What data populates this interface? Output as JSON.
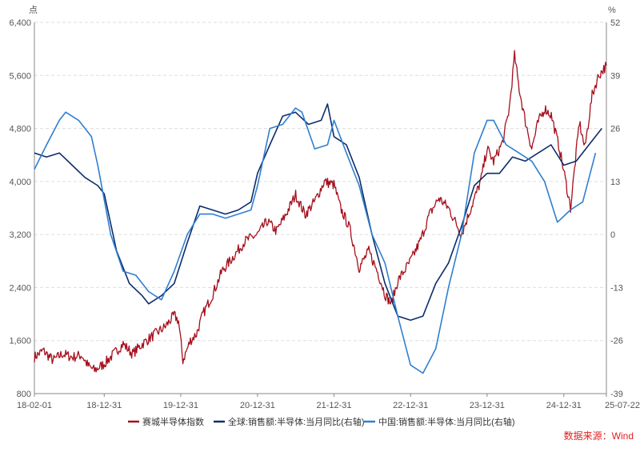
{
  "source_note": "数据来源：Wind",
  "colors": {
    "index": "#a50f1d",
    "global": "#0c2d6b",
    "china": "#2f7fd0",
    "axis_text": "#555555",
    "grid": "#dddddd",
    "source": "#e02020"
  },
  "chart_data": {
    "type": "line",
    "left_axis": {
      "unit": "点",
      "ylim": [
        800,
        6400
      ],
      "ticks": [
        "800",
        "1,600",
        "2,400",
        "3,200",
        "4,000",
        "4,800",
        "5,600",
        "6,400"
      ]
    },
    "right_axis": {
      "unit": "%",
      "ylim": [
        -39,
        52
      ],
      "ticks": [
        "-39",
        "-26",
        "-13",
        "0",
        "13",
        "26",
        "39",
        "52"
      ]
    },
    "x_axis": {
      "range": [
        "2018-02-01",
        "2025-07-22"
      ],
      "ticks": [
        "18-02-01",
        "18-12-31",
        "19-12-31",
        "20-12-31",
        "21-12-31",
        "22-12-31",
        "23-12-31",
        "24-12-31",
        "25-07-22"
      ]
    },
    "grid": "horizontal dashed",
    "legend_position": "bottom",
    "series": [
      {
        "name": "赛城半导体指数",
        "axis": "left",
        "points": [
          [
            "2018-02-01",
            1350
          ],
          [
            "2018-03-15",
            1450
          ],
          [
            "2018-05-01",
            1300
          ],
          [
            "2018-06-15",
            1400
          ],
          [
            "2018-08-01",
            1350
          ],
          [
            "2018-09-15",
            1380
          ],
          [
            "2018-10-15",
            1220
          ],
          [
            "2018-11-15",
            1150
          ],
          [
            "2018-12-31",
            1250
          ],
          [
            "2019-02-15",
            1400
          ],
          [
            "2019-03-31",
            1550
          ],
          [
            "2019-05-15",
            1400
          ],
          [
            "2019-07-01",
            1550
          ],
          [
            "2019-08-31",
            1700
          ],
          [
            "2019-10-15",
            1800
          ],
          [
            "2019-11-30",
            1980
          ],
          [
            "2019-12-20",
            1900
          ],
          [
            "2020-01-10",
            1300
          ],
          [
            "2020-02-15",
            1600
          ],
          [
            "2020-03-15",
            1700
          ],
          [
            "2020-04-15",
            2000
          ],
          [
            "2020-06-01",
            2300
          ],
          [
            "2020-07-15",
            2650
          ],
          [
            "2020-09-15",
            2900
          ],
          [
            "2020-11-01",
            3100
          ],
          [
            "2020-12-31",
            3200
          ],
          [
            "2021-02-15",
            3400
          ],
          [
            "2021-04-01",
            3250
          ],
          [
            "2021-05-15",
            3500
          ],
          [
            "2021-07-01",
            3800
          ],
          [
            "2021-08-15",
            3500
          ],
          [
            "2021-09-30",
            3700
          ],
          [
            "2021-11-15",
            4000
          ],
          [
            "2021-12-31",
            3950
          ],
          [
            "2022-01-31",
            3600
          ],
          [
            "2022-03-15",
            3300
          ],
          [
            "2022-04-30",
            2700
          ],
          [
            "2022-06-15",
            2950
          ],
          [
            "2022-07-31",
            2600
          ],
          [
            "2022-08-31",
            2300
          ],
          [
            "2022-09-30",
            2150
          ],
          [
            "2022-10-31",
            2500
          ],
          [
            "2022-12-31",
            2800
          ],
          [
            "2023-02-15",
            3100
          ],
          [
            "2023-03-31",
            3500
          ],
          [
            "2023-05-15",
            3750
          ],
          [
            "2023-06-30",
            3600
          ],
          [
            "2023-07-31",
            3400
          ],
          [
            "2023-08-31",
            3200
          ],
          [
            "2023-10-15",
            3600
          ],
          [
            "2023-11-30",
            4000
          ],
          [
            "2023-12-31",
            4500
          ],
          [
            "2024-01-31",
            4300
          ],
          [
            "2024-03-15",
            4600
          ],
          [
            "2024-04-15",
            5100
          ],
          [
            "2024-05-10",
            5900
          ],
          [
            "2024-06-01",
            5400
          ],
          [
            "2024-07-01",
            4900
          ],
          [
            "2024-07-31",
            4500
          ],
          [
            "2024-08-31",
            4900
          ],
          [
            "2024-10-01",
            5100
          ],
          [
            "2024-11-01",
            5000
          ],
          [
            "2024-12-10",
            4500
          ],
          [
            "2025-01-15",
            3900
          ],
          [
            "2025-02-01",
            3600
          ],
          [
            "2025-03-15",
            4900
          ],
          [
            "2025-04-10",
            4500
          ],
          [
            "2025-05-15",
            5300
          ],
          [
            "2025-06-15",
            5600
          ],
          [
            "2025-07-22",
            5750
          ]
        ]
      },
      {
        "name": "全球:销售额:半导体:当月同比(右轴)",
        "axis": "right",
        "points": [
          [
            "2018-02-01",
            20
          ],
          [
            "2018-03-31",
            19
          ],
          [
            "2018-05-31",
            20
          ],
          [
            "2018-07-31",
            17
          ],
          [
            "2018-09-30",
            14
          ],
          [
            "2018-11-30",
            12
          ],
          [
            "2018-12-31",
            10
          ],
          [
            "2019-02-28",
            -4
          ],
          [
            "2019-04-30",
            -12
          ],
          [
            "2019-06-30",
            -15
          ],
          [
            "2019-07-31",
            -17
          ],
          [
            "2019-09-30",
            -15
          ],
          [
            "2019-11-30",
            -12
          ],
          [
            "2020-01-31",
            -2
          ],
          [
            "2020-03-31",
            7
          ],
          [
            "2020-05-31",
            6
          ],
          [
            "2020-07-31",
            5
          ],
          [
            "2020-09-30",
            6
          ],
          [
            "2020-11-30",
            8
          ],
          [
            "2020-12-31",
            15
          ],
          [
            "2021-02-28",
            22
          ],
          [
            "2021-04-30",
            29
          ],
          [
            "2021-06-30",
            30
          ],
          [
            "2021-08-31",
            27
          ],
          [
            "2021-10-31",
            28
          ],
          [
            "2021-11-30",
            32
          ],
          [
            "2021-12-31",
            24
          ],
          [
            "2022-02-28",
            22
          ],
          [
            "2022-04-30",
            14
          ],
          [
            "2022-06-30",
            0
          ],
          [
            "2022-08-31",
            -12
          ],
          [
            "2022-10-31",
            -20
          ],
          [
            "2022-12-31",
            -21
          ],
          [
            "2023-02-28",
            -20
          ],
          [
            "2023-04-30",
            -12
          ],
          [
            "2023-06-30",
            -7
          ],
          [
            "2023-08-31",
            2
          ],
          [
            "2023-10-31",
            12
          ],
          [
            "2023-12-31",
            15
          ],
          [
            "2024-02-28",
            15
          ],
          [
            "2024-04-30",
            19
          ],
          [
            "2024-06-30",
            18
          ],
          [
            "2024-08-31",
            20
          ],
          [
            "2024-10-31",
            22
          ],
          [
            "2024-12-31",
            17
          ],
          [
            "2025-02-28",
            18
          ],
          [
            "2025-04-30",
            22
          ],
          [
            "2025-06-30",
            26
          ]
        ]
      },
      {
        "name": "中国:销售额:半导体:当月同比(右轴)",
        "axis": "right",
        "points": [
          [
            "2018-02-01",
            16
          ],
          [
            "2018-03-31",
            22
          ],
          [
            "2018-05-31",
            28
          ],
          [
            "2018-06-30",
            30
          ],
          [
            "2018-08-31",
            28
          ],
          [
            "2018-10-31",
            24
          ],
          [
            "2018-11-30",
            17
          ],
          [
            "2019-01-31",
            0
          ],
          [
            "2019-03-31",
            -9
          ],
          [
            "2019-05-31",
            -10
          ],
          [
            "2019-07-31",
            -14
          ],
          [
            "2019-09-30",
            -16
          ],
          [
            "2019-11-30",
            -9
          ],
          [
            "2020-01-31",
            0
          ],
          [
            "2020-03-31",
            5
          ],
          [
            "2020-05-31",
            5
          ],
          [
            "2020-07-31",
            4
          ],
          [
            "2020-09-30",
            5
          ],
          [
            "2020-11-30",
            6
          ],
          [
            "2020-12-31",
            12
          ],
          [
            "2021-02-28",
            26
          ],
          [
            "2021-04-30",
            27
          ],
          [
            "2021-06-30",
            31
          ],
          [
            "2021-07-31",
            30
          ],
          [
            "2021-09-30",
            21
          ],
          [
            "2021-11-30",
            22
          ],
          [
            "2021-12-31",
            28
          ],
          [
            "2022-02-28",
            20
          ],
          [
            "2022-04-30",
            12
          ],
          [
            "2022-06-30",
            0
          ],
          [
            "2022-08-31",
            -7
          ],
          [
            "2022-10-31",
            -20
          ],
          [
            "2022-12-31",
            -32
          ],
          [
            "2023-02-28",
            -34
          ],
          [
            "2023-04-30",
            -28
          ],
          [
            "2023-06-30",
            -13
          ],
          [
            "2023-08-31",
            0
          ],
          [
            "2023-10-31",
            20
          ],
          [
            "2023-12-31",
            28
          ],
          [
            "2024-01-31",
            28
          ],
          [
            "2024-03-31",
            22
          ],
          [
            "2024-05-31",
            20
          ],
          [
            "2024-07-31",
            18
          ],
          [
            "2024-09-30",
            13
          ],
          [
            "2024-11-30",
            3
          ],
          [
            "2025-01-31",
            6
          ],
          [
            "2025-03-31",
            8
          ],
          [
            "2025-05-31",
            20
          ]
        ]
      }
    ]
  }
}
